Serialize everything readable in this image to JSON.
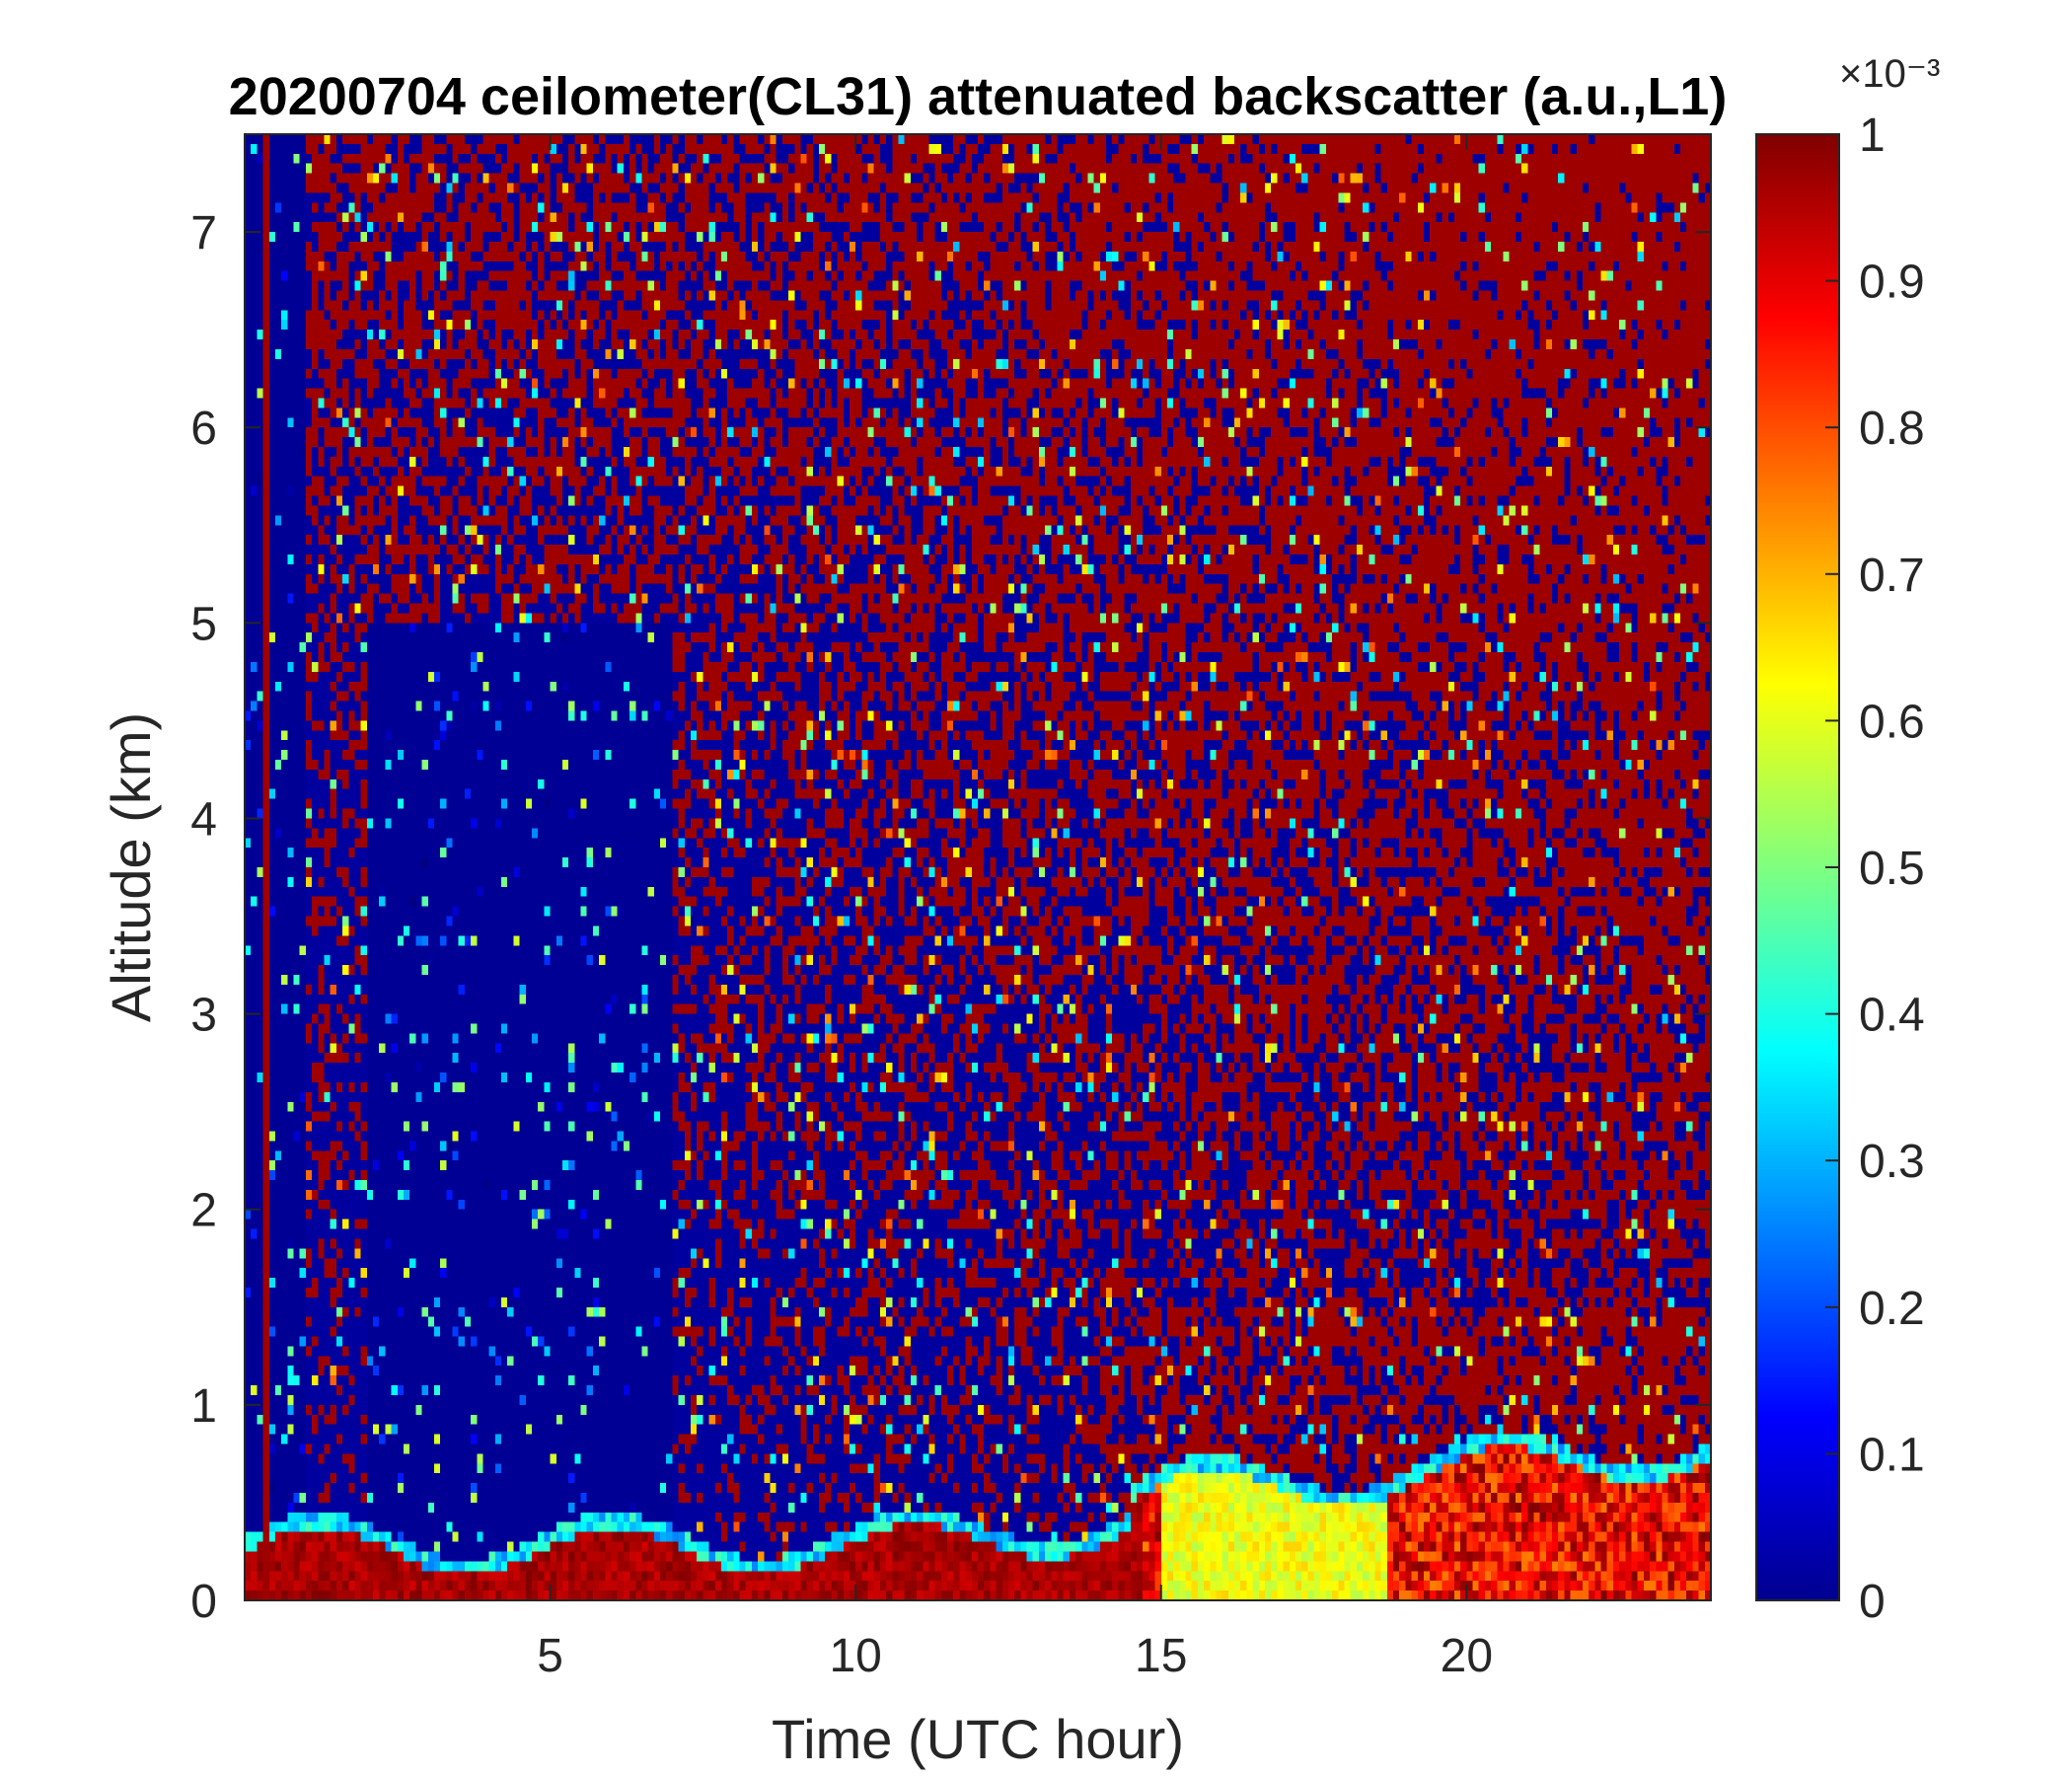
{
  "chart_data": {
    "type": "heatmap",
    "title": "20200704 ceilometer(CL31) attenuated backscatter (a.u.,L1)",
    "xlabel": "Time (UTC hour)",
    "ylabel": "Altitude (km)",
    "xlim": [
      0,
      24
    ],
    "ylim": [
      0,
      7.5
    ],
    "x_ticks": [
      5,
      10,
      15,
      20
    ],
    "y_ticks": [
      0,
      1,
      2,
      3,
      4,
      5,
      6,
      7
    ],
    "colorbar": {
      "clim": [
        0,
        0.001
      ],
      "ticks": [
        "0",
        "0.1",
        "0.2",
        "0.3",
        "0.4",
        "0.5",
        "0.6",
        "0.7",
        "0.8",
        "0.9",
        "1"
      ],
      "exponent_label": "×10⁻³",
      "colormap": "jet"
    },
    "grid": false
  },
  "colors": {
    "low": "#00008f",
    "high": "#800000",
    "axis": "#262626"
  }
}
